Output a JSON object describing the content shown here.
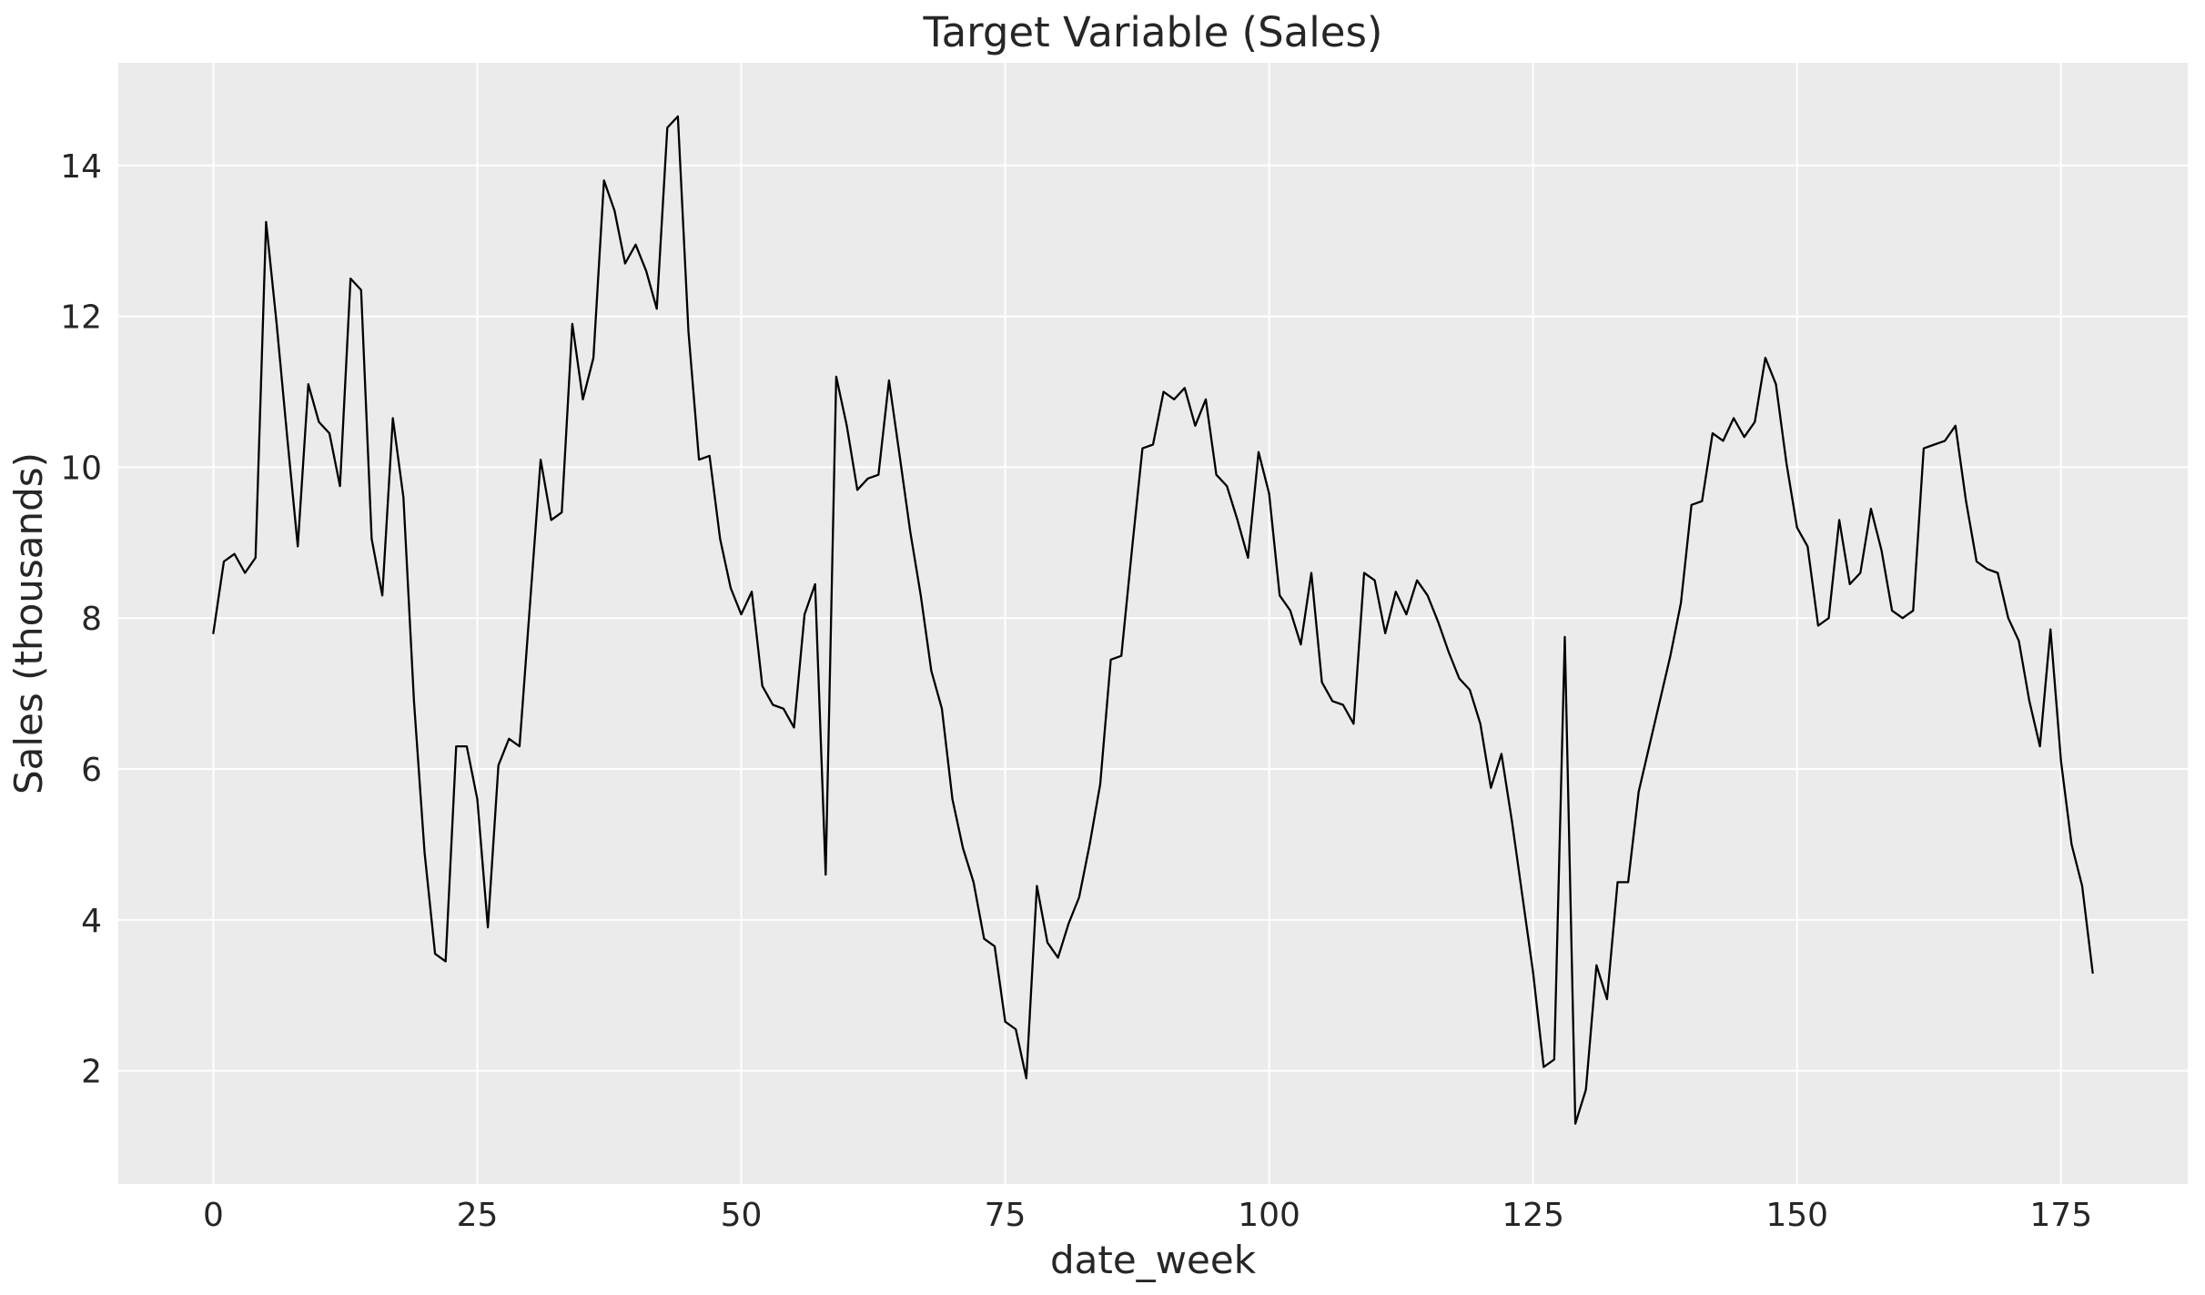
{
  "chart_data": {
    "type": "line",
    "title": "Target Variable (Sales)",
    "xlabel": "date_week",
    "ylabel": "Sales (thousands)",
    "legend": false,
    "grid": true,
    "plot_bg_color": "#EBEBEB",
    "grid_color": "#FFFFFF",
    "line_color": "#000000",
    "text_color": "#262626",
    "xlim": [
      -9,
      187
    ],
    "ylim": [
      0.5,
      15.36
    ],
    "x_ticks": [
      0,
      25,
      50,
      75,
      100,
      125,
      150,
      175
    ],
    "y_ticks": [
      2,
      4,
      6,
      8,
      10,
      12,
      14
    ],
    "x_start": 0,
    "x_step": 1,
    "x_units": "weeks",
    "series_name": "Sales (thousands)",
    "y": [
      7.8,
      8.75,
      8.85,
      8.6,
      8.8,
      13.25,
      11.9,
      10.4,
      8.95,
      11.1,
      10.6,
      10.45,
      9.75,
      12.5,
      12.35,
      9.05,
      8.3,
      10.65,
      9.6,
      6.9,
      4.9,
      3.55,
      3.45,
      6.3,
      6.3,
      5.6,
      3.9,
      6.05,
      6.4,
      6.3,
      8.2,
      10.1,
      9.3,
      9.4,
      11.9,
      10.9,
      11.45,
      13.8,
      13.4,
      12.7,
      12.95,
      12.6,
      12.1,
      14.5,
      14.65,
      11.8,
      10.1,
      10.15,
      9.05,
      8.4,
      8.05,
      8.35,
      7.1,
      6.85,
      6.8,
      6.55,
      8.05,
      8.45,
      4.6,
      11.2,
      10.55,
      9.7,
      9.85,
      9.9,
      11.15,
      10.15,
      9.15,
      8.3,
      7.3,
      6.8,
      5.6,
      4.95,
      4.5,
      3.75,
      3.65,
      2.65,
      2.55,
      1.9,
      4.45,
      3.7,
      3.5,
      3.95,
      4.3,
      5.0,
      5.8,
      7.45,
      7.5,
      8.9,
      10.25,
      10.3,
      11.0,
      10.9,
      11.05,
      10.55,
      10.9,
      9.9,
      9.75,
      9.3,
      8.8,
      10.2,
      9.65,
      8.3,
      8.1,
      7.65,
      8.6,
      7.15,
      6.9,
      6.85,
      6.6,
      8.6,
      8.5,
      7.8,
      8.35,
      8.05,
      8.5,
      8.3,
      7.95,
      7.55,
      7.2,
      7.05,
      6.6,
      5.75,
      6.2,
      5.3,
      4.3,
      3.3,
      2.05,
      2.15,
      7.75,
      1.3,
      1.75,
      3.4,
      2.95,
      4.5,
      4.5,
      5.7,
      6.3,
      6.9,
      7.5,
      8.2,
      9.5,
      9.55,
      10.45,
      10.35,
      10.65,
      10.4,
      10.6,
      11.45,
      11.1,
      10.05,
      9.2,
      8.95,
      7.9,
      8.0,
      9.3,
      8.45,
      8.6,
      9.45,
      8.9,
      8.1,
      8.0,
      8.1,
      10.25,
      10.3,
      10.35,
      10.55,
      9.55,
      8.75,
      8.65,
      8.6,
      8.0,
      7.7,
      6.9,
      6.3,
      7.85,
      6.1,
      5.0,
      4.45,
      3.3
    ]
  }
}
